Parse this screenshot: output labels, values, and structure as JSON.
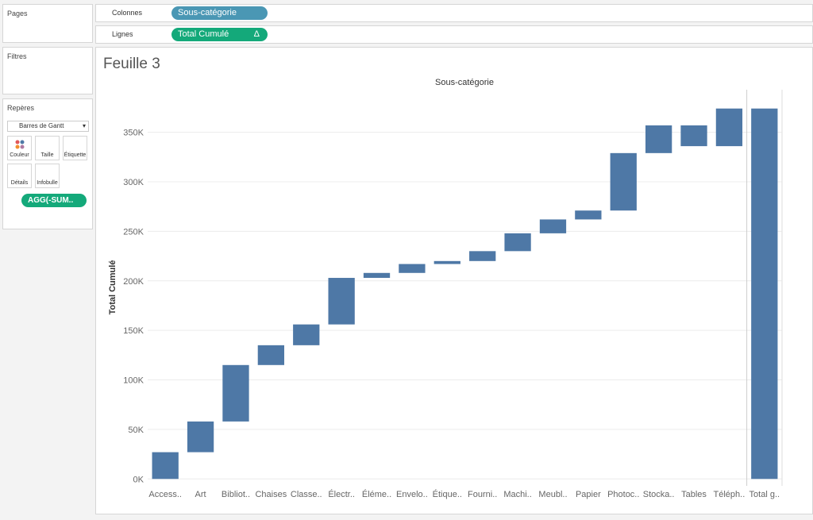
{
  "ui": {
    "pages": "Pages",
    "filters": "Filtres",
    "marks": "Repères",
    "mark_type": "Barres de Gantt",
    "mark_buttons": [
      "Couleur",
      "Taille",
      "Étiquette",
      "Détails",
      "Infobulle"
    ],
    "mark_pill": "AGG(-SUM..",
    "columns_label": "Colonnes",
    "columns_pill": "Sous-catégorie",
    "rows_label": "Lignes",
    "rows_pill": "Total Cumulé",
    "rows_pill_icon": "Δ",
    "sheet_title": "Feuille 3"
  },
  "chart_data": {
    "type": "waterfall",
    "title": "Sous-catégorie",
    "y_label": "Total Cumulé",
    "color": "#4e78a6",
    "grid": true,
    "categories": [
      "Access..",
      "Art",
      "Bibliot..",
      "Chaises",
      "Classe..",
      "Électr..",
      "Éléme..",
      "Envelo..",
      "Étique..",
      "Fourni..",
      "Machi..",
      "Meubl..",
      "Papier",
      "Photoc..",
      "Stocka..",
      "Tables",
      "Téléph.."
    ],
    "values": [
      27000,
      31000,
      57000,
      20000,
      21000,
      47000,
      5000,
      9000,
      3000,
      10000,
      18000,
      14000,
      9000,
      58000,
      28000,
      -21000,
      38000
    ],
    "total": {
      "label": "Total g..",
      "value": 374000
    },
    "ylim": [
      -7000,
      393000
    ],
    "yticks": [
      {
        "value": 0,
        "label": "0K"
      },
      {
        "value": 50000,
        "label": "50K"
      },
      {
        "value": 100000,
        "label": "100K"
      },
      {
        "value": 150000,
        "label": "150K"
      },
      {
        "value": 200000,
        "label": "200K"
      },
      {
        "value": 250000,
        "label": "250K"
      },
      {
        "value": 300000,
        "label": "300K"
      },
      {
        "value": 350000,
        "label": "350K"
      }
    ]
  }
}
